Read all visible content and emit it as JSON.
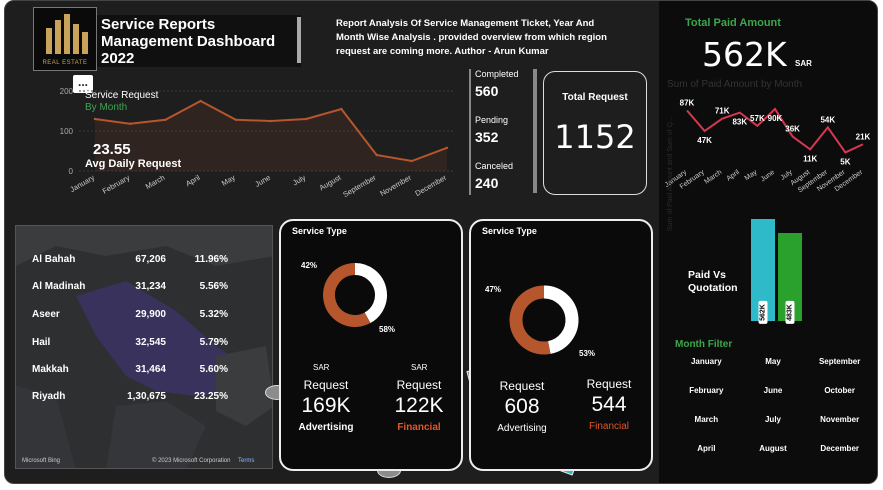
{
  "header": {
    "title": "Service Reports Management Dashboard 2022",
    "description": "Report Analysis Of Service Management Ticket, Year And Month Wise Analysis . provided overview from which region request are coming more. Author - Arun Kumar",
    "logo_text": "REAL ESTATE",
    "more_label": "..."
  },
  "monthly_request": {
    "title": "Service Request",
    "subtitle": "By Month",
    "avg_value": "23.55",
    "avg_label": "Avg Daily Request"
  },
  "status": [
    {
      "label": "Completed",
      "value": "560"
    },
    {
      "label": "Pending",
      "value": "352"
    },
    {
      "label": "Canceled",
      "value": "240"
    }
  ],
  "total_request": {
    "label": "Total Request",
    "value": "1152"
  },
  "paid": {
    "title": "Total Paid Amount",
    "value": "562K",
    "unit": "SAR",
    "chart_subtitle": "Sum of Paid Amount by Month"
  },
  "paid_vs_quotation": {
    "label": "Paid Vs Quotation",
    "axis_label": "Sum of Paid Amount and Sum of Q...",
    "bars": [
      {
        "tag": "562K",
        "value": 562,
        "color": "#2fbac9"
      },
      {
        "tag": "483K",
        "value": 483,
        "color": "#2aa12c"
      }
    ]
  },
  "month_filter": {
    "title": "Month Filter",
    "months": [
      "January",
      "May",
      "September",
      "February",
      "June",
      "October",
      "March",
      "July",
      "November",
      "April",
      "August",
      "December"
    ]
  },
  "regions": [
    {
      "name": "Al Bahah",
      "amount": "67,206",
      "pct": "11.96%"
    },
    {
      "name": "Al Madinah",
      "amount": "31,234",
      "pct": "5.56%"
    },
    {
      "name": "Aseer",
      "amount": "29,900",
      "pct": "5.32%"
    },
    {
      "name": "Hail",
      "amount": "32,545",
      "pct": "5.79%"
    },
    {
      "name": "Makkah",
      "amount": "31,464",
      "pct": "5.60%"
    },
    {
      "name": "Riyadh",
      "amount": "1,30,675",
      "pct": "23.25%"
    }
  ],
  "map_footer": {
    "bing": "Microsoft Bing",
    "copyright": "© 2023 Microsoft Corporation",
    "terms": "Terms"
  },
  "service_cards": [
    {
      "title": "Service Type",
      "pct_a": "42%",
      "pct_b": "58%",
      "left": {
        "unit": "SAR",
        "label": "Request",
        "value": "169K",
        "category": "Advertising"
      },
      "right": {
        "unit": "SAR",
        "label": "Request",
        "value": "122K",
        "category": "Financial"
      }
    },
    {
      "title": "Service Type",
      "pct_a": "47%",
      "pct_b": "53%",
      "left": {
        "label": "Request",
        "value": "608",
        "category": "Advertising"
      },
      "right": {
        "label": "Request",
        "value": "544",
        "category": "Financial"
      }
    }
  ],
  "colors": {
    "accent": "#b5562c",
    "green": "#3ca64b",
    "teal": "#2fbac9",
    "paid_line": "#d6384f",
    "financial": "#e0562a"
  },
  "chart_data": [
    {
      "type": "line",
      "title": "Service Request",
      "subtitle": "By Month",
      "categories": [
        "January",
        "February",
        "March",
        "April",
        "May",
        "June",
        "July",
        "August",
        "September",
        "November",
        "December"
      ],
      "values": [
        130,
        118,
        128,
        175,
        128,
        125,
        130,
        155,
        40,
        25,
        58
      ],
      "y_ticks": [
        "0",
        "100",
        "200"
      ],
      "ylim": [
        0,
        200
      ]
    },
    {
      "type": "line",
      "title": "Sum of Paid Amount by Month",
      "categories": [
        "January",
        "February",
        "March",
        "April",
        "May",
        "June",
        "July",
        "August",
        "September",
        "November",
        "December"
      ],
      "values": [
        87,
        47,
        71,
        83,
        57,
        90,
        36,
        11,
        54,
        5,
        21
      ],
      "labels": [
        "87K",
        "47K",
        "71K",
        "83K",
        "57K",
        "90K",
        "36K",
        "11K",
        "54K",
        "5K",
        "21K"
      ]
    },
    {
      "type": "pie",
      "title": "Service Type",
      "slices": [
        {
          "value": 42
        },
        {
          "value": 58
        }
      ],
      "labels": [
        "42%",
        "58%"
      ]
    },
    {
      "type": "pie",
      "title": "Service Type",
      "slices": [
        {
          "value": 47
        },
        {
          "value": 53
        }
      ],
      "labels": [
        "47%",
        "53%"
      ]
    },
    {
      "type": "bar",
      "title": "Paid Vs Quotation",
      "categories": [
        "Paid",
        "Quotation"
      ],
      "values": [
        562,
        483
      ],
      "labels": [
        "562K",
        "483K"
      ]
    }
  ]
}
